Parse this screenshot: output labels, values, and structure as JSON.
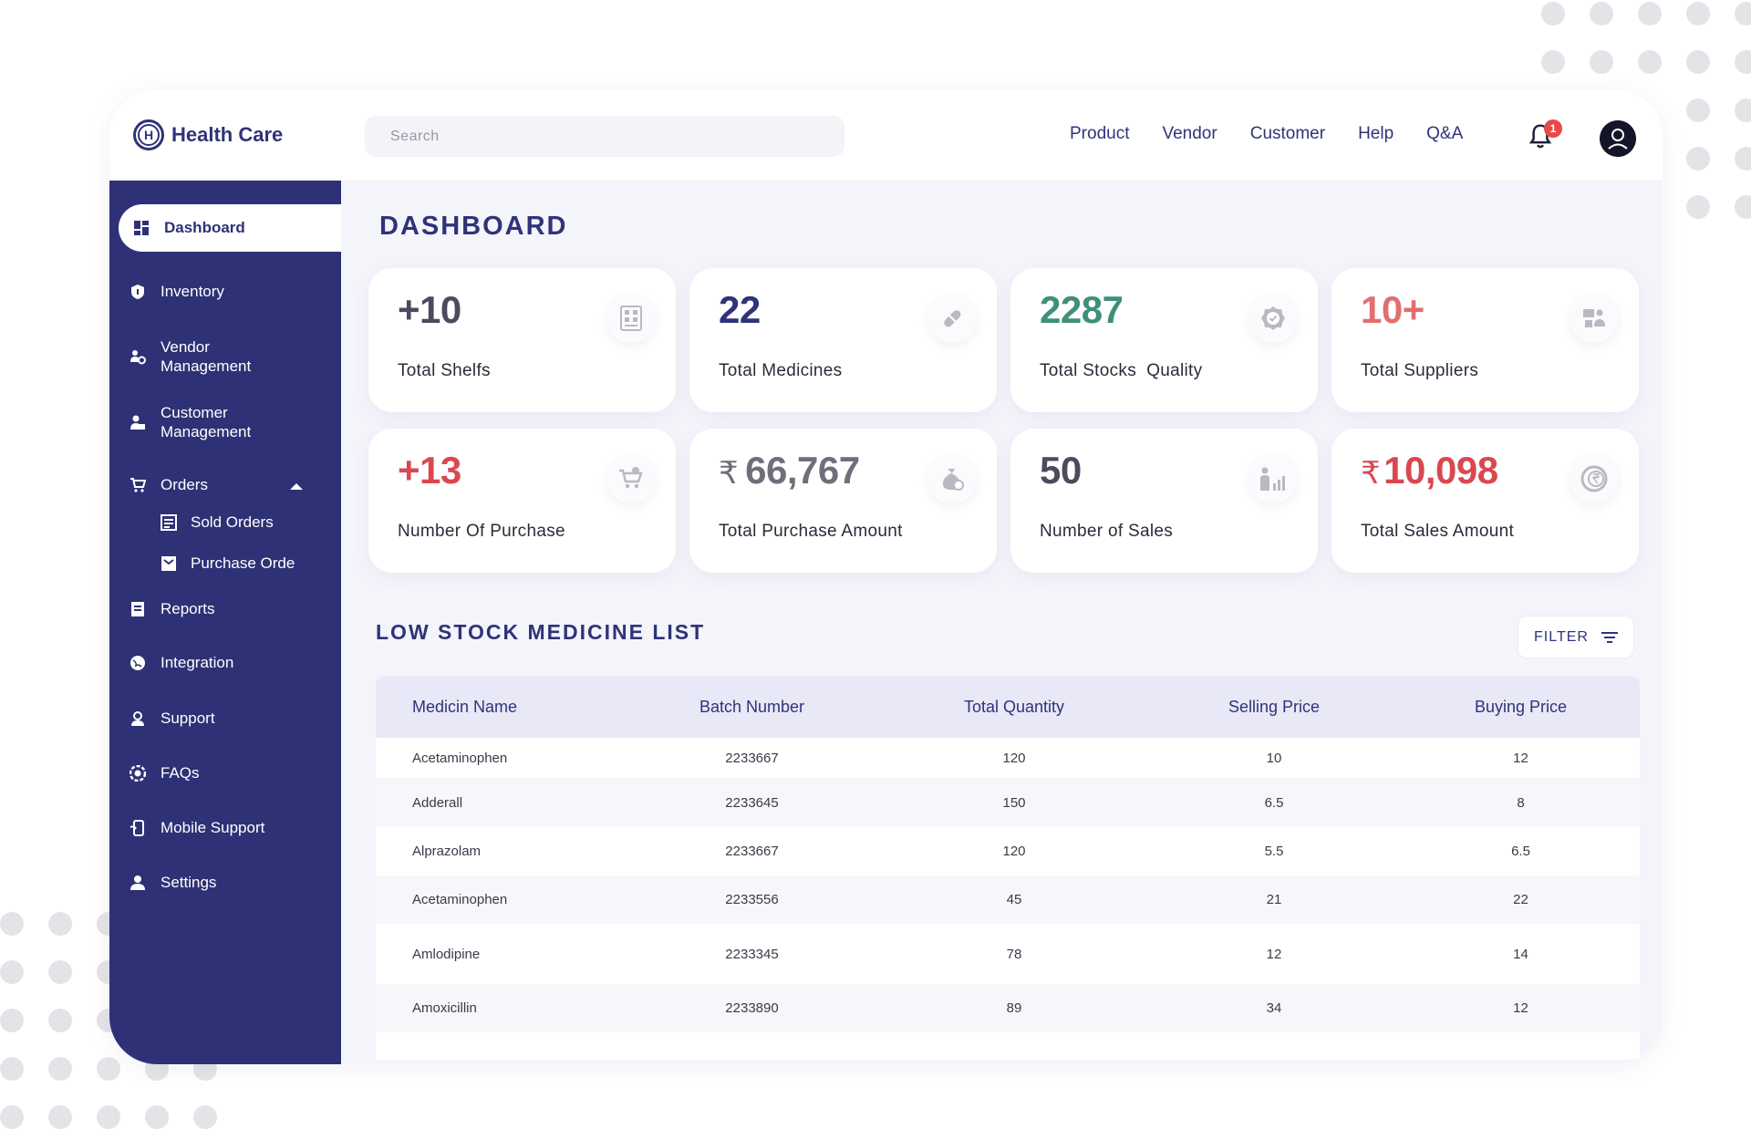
{
  "brand": {
    "name": "Health Care",
    "logo_letter": "H",
    "color": "#2f3379"
  },
  "search": {
    "placeholder": "Search"
  },
  "nav": [
    "Product",
    "Vendor",
    "Customer",
    "Help",
    "Q&A"
  ],
  "notifications": {
    "count": "1"
  },
  "sidebar": {
    "active": "Dashboard",
    "items": {
      "dashboard": "Dashboard",
      "inventory": "Inventory",
      "vendor": "Vendor\nManagement",
      "customer": "Customer\nManagement",
      "orders": "Orders",
      "sold_orders": "Sold Orders",
      "purchase_orders": "Purchase Orde",
      "reports": "Reports",
      "integration": "Integration",
      "support": "Support",
      "faqs": "FAQs",
      "mobile_support": "Mobile Support",
      "settings": "Settings"
    },
    "bg_color": "#2e3175"
  },
  "main": {
    "title": "DASHBOARD"
  },
  "stats": [
    {
      "value": "+10",
      "label": "Total Shelfs",
      "color": "#4b4b5e",
      "icon": "shelf-icon"
    },
    {
      "value": "22",
      "label": "Total Medicines",
      "color": "#2f3379",
      "icon": "pill-icon"
    },
    {
      "value": "2287",
      "label": "Total Stocks  Quality",
      "color": "#3f8f7a",
      "icon": "quality-badge-icon"
    },
    {
      "value": "10+",
      "label": "Total Suppliers",
      "color": "#e06f6f",
      "icon": "suppliers-icon"
    },
    {
      "value": "+13",
      "label": "Number Of Purchase",
      "color": "#d9484f",
      "icon": "cart-icon"
    },
    {
      "value": "66,767",
      "prefix": "₹",
      "label": "Total Purchase Amount",
      "color": "#6e6f7a",
      "icon": "money-bag-icon"
    },
    {
      "value": "50",
      "label": "Number of Sales",
      "color": "#4b4b5e",
      "icon": "sales-chart-icon"
    },
    {
      "value": "10,098",
      "prefix": "₹",
      "label": "Total Sales Amount",
      "color": "#d9484f",
      "icon": "rupee-coin-icon"
    }
  ],
  "low_stock": {
    "title": "LOW STOCK MEDICINE LIST",
    "filter_label": "FILTER",
    "columns": [
      "Medicin Name",
      "Batch Number",
      "Total Quantity",
      "Selling Price",
      "Buying Price"
    ],
    "rows": [
      [
        "Acetaminophen",
        "2233667",
        "120",
        "10",
        "12"
      ],
      [
        "Adderall",
        "2233645",
        "150",
        "6.5",
        "8"
      ],
      [
        "Alprazolam",
        "2233667",
        "120",
        "5.5",
        "6.5"
      ],
      [
        "Acetaminophen",
        "2233556",
        "45",
        "21",
        "22"
      ],
      [
        "Amlodipine",
        "2233345",
        "78",
        "12",
        "14"
      ],
      [
        "Amoxicillin",
        "2233890",
        "89",
        "34",
        "12"
      ]
    ]
  }
}
